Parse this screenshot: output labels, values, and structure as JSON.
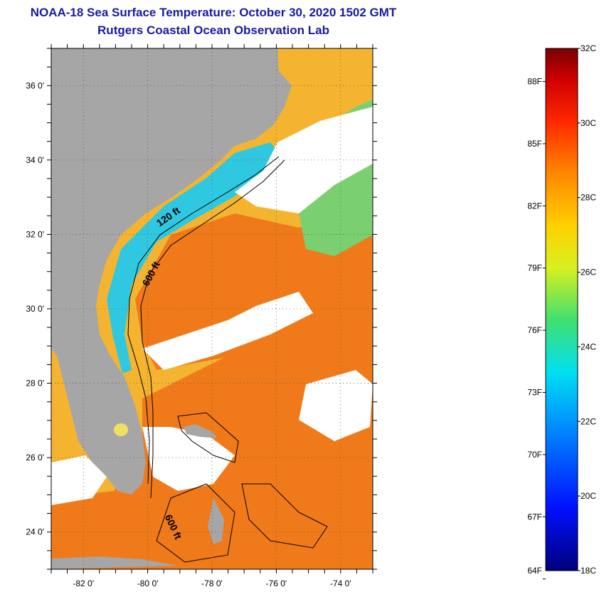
{
  "header": {
    "title_line1": "NOAA-18 Sea Surface Temperature:  October 30, 2020 1502 GMT",
    "title_line2": "Rutgers Coastal Ocean Observation Lab",
    "title_color": "#1a1aa0"
  },
  "map": {
    "lon_range": [
      -83,
      -73
    ],
    "lat_range": [
      23,
      37
    ],
    "lat_ticks": [
      {
        "value": 36,
        "label": "36 0'"
      },
      {
        "value": 34,
        "label": "34 0'"
      },
      {
        "value": 32,
        "label": "32 0'"
      },
      {
        "value": 30,
        "label": "30 0'"
      },
      {
        "value": 28,
        "label": "28 0'"
      },
      {
        "value": 26,
        "label": "26 0'"
      },
      {
        "value": 24,
        "label": "24 0'"
      }
    ],
    "lon_ticks": [
      {
        "value": -82,
        "label": "-82 0'"
      },
      {
        "value": -80,
        "label": "-80 0'"
      },
      {
        "value": -78,
        "label": "-78 0'"
      },
      {
        "value": -76,
        "label": "-76 0'"
      },
      {
        "value": -74,
        "label": "-74 0'"
      }
    ],
    "contour_labels": [
      {
        "text": "120 ft",
        "lon": -79.3,
        "lat": 32.4,
        "rotate": -35
      },
      {
        "text": "600 ft",
        "lon": -79.8,
        "lat": 30.9,
        "rotate": -62
      },
      {
        "text": "600 ft",
        "lon": -79.3,
        "lat": 24.1,
        "rotate": 65
      }
    ],
    "colors": {
      "land": "#a6a6a6",
      "cloud": "#ffffff",
      "ocean_warm": "#f07a1a",
      "ocean_mid": "#f5b430",
      "ocean_cool": "#7ad070",
      "ocean_cold": "#30c8e0"
    }
  },
  "colorbar": {
    "range_c": [
      18,
      32
    ],
    "celsius_labels": [
      {
        "value": 32,
        "label": "32C"
      },
      {
        "value": 30,
        "label": "30C"
      },
      {
        "value": 28,
        "label": "28C"
      },
      {
        "value": 26,
        "label": "26C"
      },
      {
        "value": 24,
        "label": "24C"
      },
      {
        "value": 22,
        "label": "22C"
      },
      {
        "value": 20,
        "label": "20C"
      },
      {
        "value": 18,
        "label": "18C"
      }
    ],
    "fahrenheit_labels": [
      {
        "value": 88,
        "label": "88F"
      },
      {
        "value": 85,
        "label": "85F"
      },
      {
        "value": 82,
        "label": "82F"
      },
      {
        "value": 79,
        "label": "79F"
      },
      {
        "value": 76,
        "label": "76F"
      },
      {
        "value": 73,
        "label": "73F"
      },
      {
        "value": 70,
        "label": "70F"
      },
      {
        "value": 67,
        "label": "67F"
      },
      {
        "value": 64,
        "label": "64F"
      }
    ]
  }
}
